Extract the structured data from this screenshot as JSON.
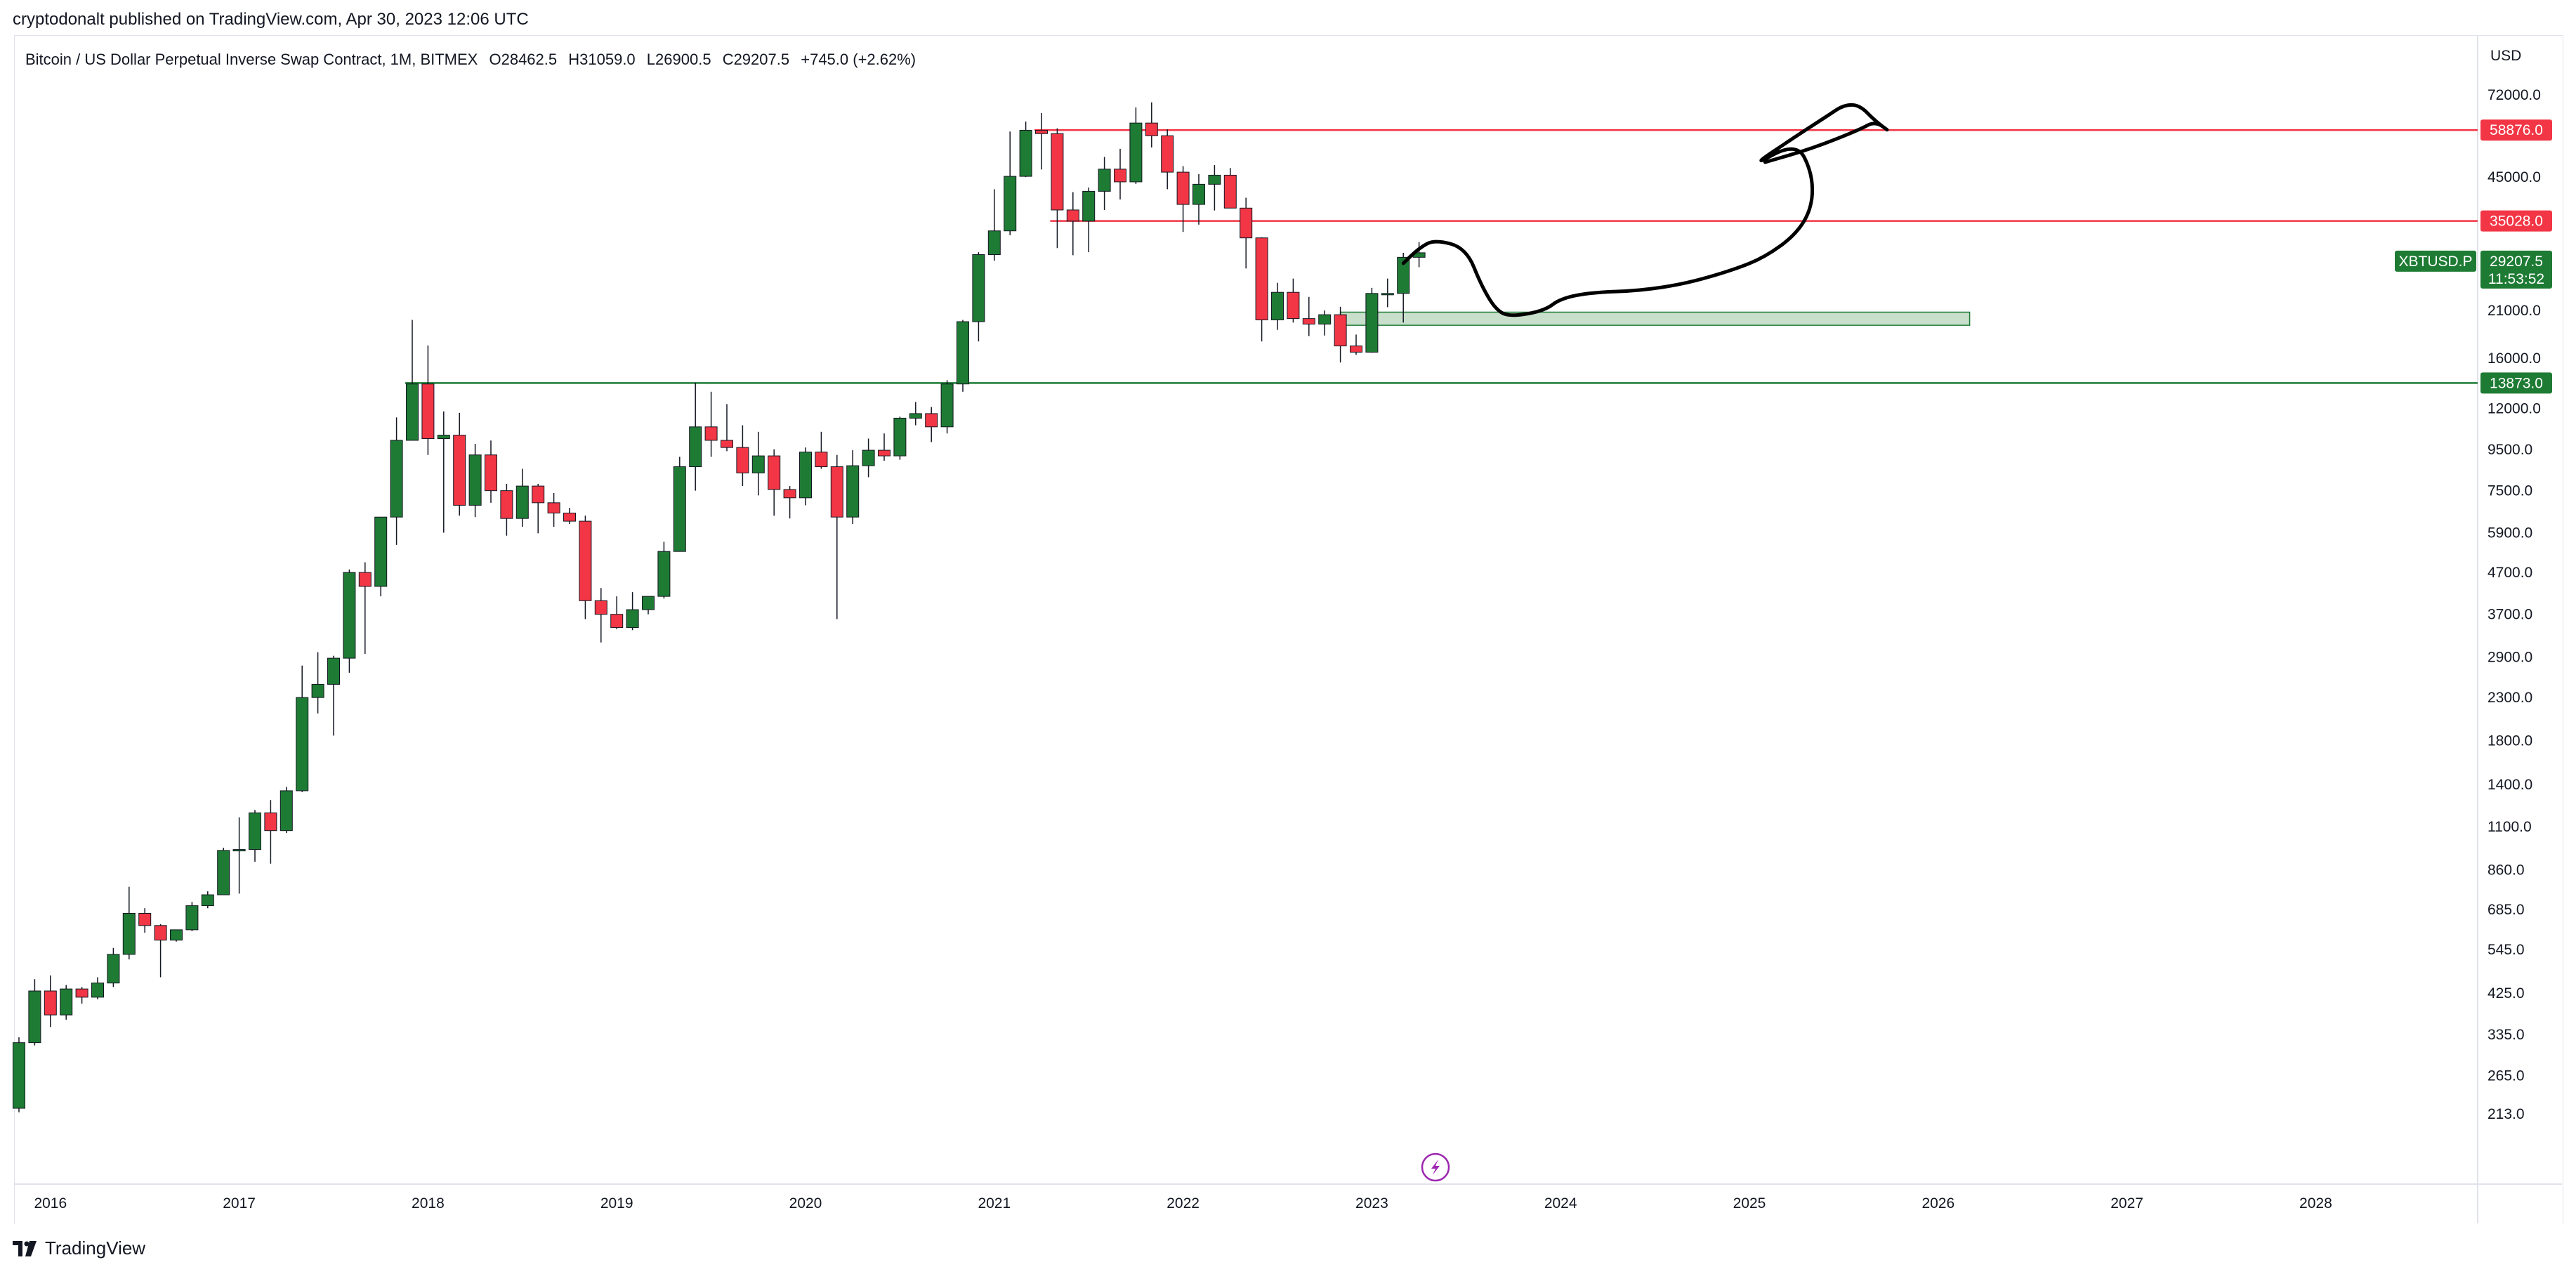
{
  "header": {
    "published": "cryptodonalt published on TradingView.com, Apr 30, 2023 12:06 UTC"
  },
  "symbol": {
    "name": "Bitcoin / US Dollar Perpetual Inverse Swap Contract, 1M, BITMEX",
    "open": "O28462.5",
    "high": "H31059.0",
    "low": "L26900.5",
    "close": "C29207.5",
    "change": "+745.0 (+2.62%)"
  },
  "currency": "USD",
  "footer": {
    "brand": "TradingView"
  },
  "colors": {
    "up": "#1e7b34",
    "down": "#f23645",
    "red_line": "#f23645",
    "green_line": "#1e7b34",
    "zone_fill": "#c8dfcc",
    "zone_stroke": "#1e7b34",
    "grid": "#e0e3eb",
    "drawing": "#000000",
    "lightning": "#9c27b0"
  },
  "chart_data": {
    "type": "candlestick",
    "scale": "log",
    "ylim": [
      180,
      92000
    ],
    "x_start": "2015-11",
    "x_end": "2028-12",
    "x_tick_labels": [
      "2016",
      "2017",
      "2018",
      "2019",
      "2020",
      "2021",
      "2022",
      "2023",
      "2024",
      "2025",
      "2026",
      "2027",
      "2028"
    ],
    "y_tick_labels": [
      "72000.0",
      "45000.0",
      "21000.0",
      "16000.0",
      "12000.0",
      "9500.0",
      "7500.0",
      "5900.0",
      "4700.0",
      "3700.0",
      "2900.0",
      "2300.0",
      "1800.0",
      "1400.0",
      "1100.0",
      "860.0",
      "685.0",
      "545.0",
      "425.0",
      "335.0",
      "265.0",
      "213.0"
    ],
    "price_tags": {
      "red_high": "58876.0",
      "red_low": "35028.0",
      "current": "29207.5",
      "countdown": "11:53:52",
      "symbol": "XBTUSD.P",
      "green": "13873.0"
    },
    "levels": [
      {
        "price": 58876.0,
        "color": "red",
        "from": "2021-04"
      },
      {
        "price": 35028.0,
        "color": "red",
        "from": "2021-05"
      },
      {
        "price": 13873.0,
        "color": "green",
        "from": "2017-12"
      }
    ],
    "zone": {
      "from": "2022-11",
      "to": "2026-03",
      "low": 19300,
      "high": 20800
    },
    "projection": [
      [
        "2023-03",
        27500
      ],
      [
        "2023-04",
        30000
      ],
      [
        "2023-05",
        31500
      ],
      [
        "2023-07",
        30000
      ],
      [
        "2023-08",
        24000
      ],
      [
        "2023-09",
        20800
      ],
      [
        "2023-10",
        20300
      ],
      [
        "2023-12",
        21000
      ],
      [
        "2024-01",
        22500
      ],
      [
        "2024-03",
        23300
      ],
      [
        "2024-06",
        23500
      ],
      [
        "2024-09",
        24500
      ],
      [
        "2024-12",
        26500
      ],
      [
        "2025-02",
        28500
      ],
      [
        "2025-04",
        32500
      ],
      [
        "2025-05",
        38000
      ],
      [
        "2025-05",
        46000
      ],
      [
        "2025-04",
        55000
      ],
      [
        "2025-01",
        47500
      ],
      [
        "2025-04",
        57000
      ],
      [
        "2025-06",
        64000
      ],
      [
        "2025-07",
        68000
      ],
      [
        "2025-08",
        68000
      ],
      [
        "2025-09",
        62000
      ],
      [
        "2025-10",
        58000
      ],
      [
        "2025-09",
        62000
      ],
      [
        "2025-08",
        59000
      ],
      [
        "2025-05",
        53000
      ],
      [
        "2025-02",
        49000
      ]
    ],
    "candles": [
      [
        "2015-11",
        220,
        330,
        215,
        320
      ],
      [
        "2015-12",
        320,
        460,
        315,
        430
      ],
      [
        "2016-01",
        430,
        470,
        350,
        375
      ],
      [
        "2016-02",
        375,
        445,
        365,
        435
      ],
      [
        "2016-03",
        435,
        440,
        400,
        415
      ],
      [
        "2016-04",
        415,
        465,
        410,
        450
      ],
      [
        "2016-05",
        450,
        550,
        440,
        530
      ],
      [
        "2016-06",
        530,
        780,
        515,
        670
      ],
      [
        "2016-07",
        670,
        690,
        600,
        625
      ],
      [
        "2016-08",
        625,
        630,
        465,
        575
      ],
      [
        "2016-09",
        575,
        610,
        570,
        610
      ],
      [
        "2016-10",
        610,
        715,
        605,
        700
      ],
      [
        "2016-11",
        700,
        760,
        690,
        745
      ],
      [
        "2016-12",
        745,
        975,
        745,
        960
      ],
      [
        "2017-01",
        960,
        1160,
        750,
        965
      ],
      [
        "2017-02",
        965,
        1210,
        900,
        1190
      ],
      [
        "2017-03",
        1190,
        1280,
        890,
        1075
      ],
      [
        "2017-04",
        1075,
        1380,
        1060,
        1350
      ],
      [
        "2017-05",
        1350,
        2760,
        1340,
        2300
      ],
      [
        "2017-06",
        2300,
        2980,
        2100,
        2480
      ],
      [
        "2017-07",
        2480,
        2920,
        1850,
        2880
      ],
      [
        "2017-08",
        2880,
        4780,
        2650,
        4700
      ],
      [
        "2017-09",
        4700,
        4980,
        2950,
        4340
      ],
      [
        "2017-10",
        4340,
        6450,
        4100,
        6450
      ],
      [
        "2017-11",
        6450,
        11400,
        5500,
        10000
      ],
      [
        "2017-12",
        10000,
        19900,
        10000,
        13800
      ],
      [
        "2018-01",
        13800,
        17200,
        9200,
        10100
      ],
      [
        "2018-02",
        10100,
        11800,
        5900,
        10300
      ],
      [
        "2018-03",
        10300,
        11700,
        6500,
        6900
      ],
      [
        "2018-04",
        6900,
        9800,
        6450,
        9200
      ],
      [
        "2018-05",
        9200,
        9990,
        7000,
        7500
      ],
      [
        "2018-06",
        7500,
        7800,
        5800,
        6400
      ],
      [
        "2018-07",
        6400,
        8500,
        6100,
        7700
      ],
      [
        "2018-08",
        7700,
        7800,
        5880,
        7000
      ],
      [
        "2018-09",
        7000,
        7400,
        6100,
        6600
      ],
      [
        "2018-10",
        6600,
        6800,
        6200,
        6300
      ],
      [
        "2018-11",
        6300,
        6500,
        3600,
        4000
      ],
      [
        "2018-12",
        4000,
        4300,
        3150,
        3700
      ],
      [
        "2019-01",
        3700,
        4100,
        3400,
        3430
      ],
      [
        "2019-02",
        3430,
        4200,
        3380,
        3800
      ],
      [
        "2019-03",
        3800,
        4100,
        3700,
        4100
      ],
      [
        "2019-04",
        4100,
        5600,
        4050,
        5300
      ],
      [
        "2019-05",
        5300,
        9100,
        5300,
        8600
      ],
      [
        "2019-06",
        8600,
        13900,
        7500,
        10800
      ],
      [
        "2019-07",
        10800,
        13200,
        9100,
        10000
      ],
      [
        "2019-08",
        10000,
        12300,
        9400,
        9600
      ],
      [
        "2019-09",
        9600,
        10900,
        7700,
        8300
      ],
      [
        "2019-10",
        8300,
        10500,
        7300,
        9150
      ],
      [
        "2019-11",
        9150,
        9500,
        6500,
        7550
      ],
      [
        "2019-12",
        7550,
        7700,
        6400,
        7200
      ],
      [
        "2020-01",
        7200,
        9600,
        6900,
        9350
      ],
      [
        "2020-02",
        9350,
        10500,
        8500,
        8600
      ],
      [
        "2020-03",
        8600,
        9200,
        3600,
        6450
      ],
      [
        "2020-04",
        6450,
        9450,
        6200,
        8650
      ],
      [
        "2020-05",
        8650,
        10100,
        8100,
        9450
      ],
      [
        "2020-06",
        9450,
        10400,
        8900,
        9150
      ],
      [
        "2020-07",
        9150,
        11450,
        8950,
        11350
      ],
      [
        "2020-08",
        11350,
        12450,
        10900,
        11650
      ],
      [
        "2020-09",
        11650,
        12100,
        9900,
        10800
      ],
      [
        "2020-10",
        10800,
        14100,
        10400,
        13800
      ],
      [
        "2020-11",
        13800,
        19900,
        13200,
        19700
      ],
      [
        "2020-12",
        19700,
        29300,
        17600,
        28900
      ],
      [
        "2021-01",
        28900,
        42000,
        27900,
        33100
      ],
      [
        "2021-02",
        33100,
        58400,
        32300,
        45200
      ],
      [
        "2021-03",
        45200,
        61800,
        45000,
        58800
      ],
      [
        "2021-04",
        58800,
        64900,
        47000,
        57700
      ],
      [
        "2021-05",
        57700,
        59500,
        30000,
        37300
      ],
      [
        "2021-06",
        37300,
        41300,
        28800,
        35000
      ],
      [
        "2021-07",
        35000,
        42400,
        29300,
        41500
      ],
      [
        "2021-08",
        41500,
        50500,
        37300,
        47100
      ],
      [
        "2021-09",
        47100,
        52900,
        39600,
        43800
      ],
      [
        "2021-10",
        43800,
        67000,
        43300,
        61300
      ],
      [
        "2021-11",
        61300,
        69000,
        53300,
        57000
      ],
      [
        "2021-12",
        57000,
        59100,
        42000,
        46300
      ],
      [
        "2022-01",
        46300,
        47900,
        32900,
        38500
      ],
      [
        "2022-02",
        38500,
        45800,
        34300,
        43200
      ],
      [
        "2022-03",
        43200,
        48200,
        37200,
        45500
      ],
      [
        "2022-04",
        45500,
        47400,
        37700,
        37700
      ],
      [
        "2022-05",
        37700,
        40000,
        26700,
        31800
      ],
      [
        "2022-06",
        31800,
        31900,
        17600,
        19900
      ],
      [
        "2022-07",
        19900,
        24600,
        18800,
        23300
      ],
      [
        "2022-08",
        23300,
        25200,
        19600,
        20050
      ],
      [
        "2022-09",
        20050,
        22700,
        18150,
        19430
      ],
      [
        "2022-10",
        19430,
        21000,
        18200,
        20500
      ],
      [
        "2022-11",
        20500,
        21450,
        15600,
        17150
      ],
      [
        "2022-12",
        17150,
        18300,
        16300,
        16550
      ],
      [
        "2023-01",
        16550,
        23900,
        16500,
        23150
      ],
      [
        "2023-02",
        23150,
        25200,
        21400,
        23150
      ],
      [
        "2023-03",
        23150,
        29200,
        19600,
        28460
      ],
      [
        "2023-04",
        28460,
        31059,
        26900,
        29207.5
      ]
    ]
  }
}
